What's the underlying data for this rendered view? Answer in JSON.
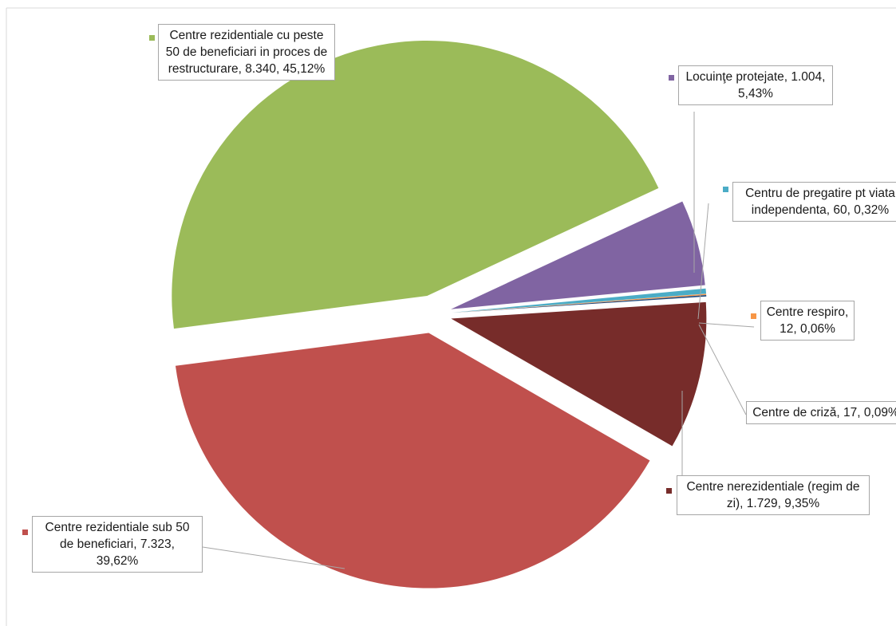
{
  "chart_data": {
    "type": "pie",
    "categories": [
      "Centre rezidentiale cu peste 50 de beneficiari in proces de restructurare",
      "Locuinţe protejate",
      "Centru de pregatire pt viata independenta",
      "Centre respiro",
      "Centre de criză",
      "Centre nerezidentiale (regim de zi)",
      "Centre rezidentiale sub 50 de beneficiari"
    ],
    "values": [
      8340,
      1004,
      60,
      12,
      17,
      1729,
      7323
    ],
    "value_labels": [
      "8.340",
      "1.004",
      "60",
      "12",
      "17",
      "1.729",
      "7.323"
    ],
    "percents": [
      45.12,
      5.43,
      0.32,
      0.06,
      0.09,
      9.35,
      39.62
    ],
    "percent_labels": [
      "45,12%",
      "5,43%",
      "0,32%",
      "0,06%",
      "0,09%",
      "9,35%",
      "39,62%"
    ],
    "colors": [
      "#9bbb59",
      "#8064a2",
      "#4bacc6",
      "#f79646",
      "#1f497d",
      "#772c2a",
      "#c0504d"
    ],
    "exploded": true
  }
}
